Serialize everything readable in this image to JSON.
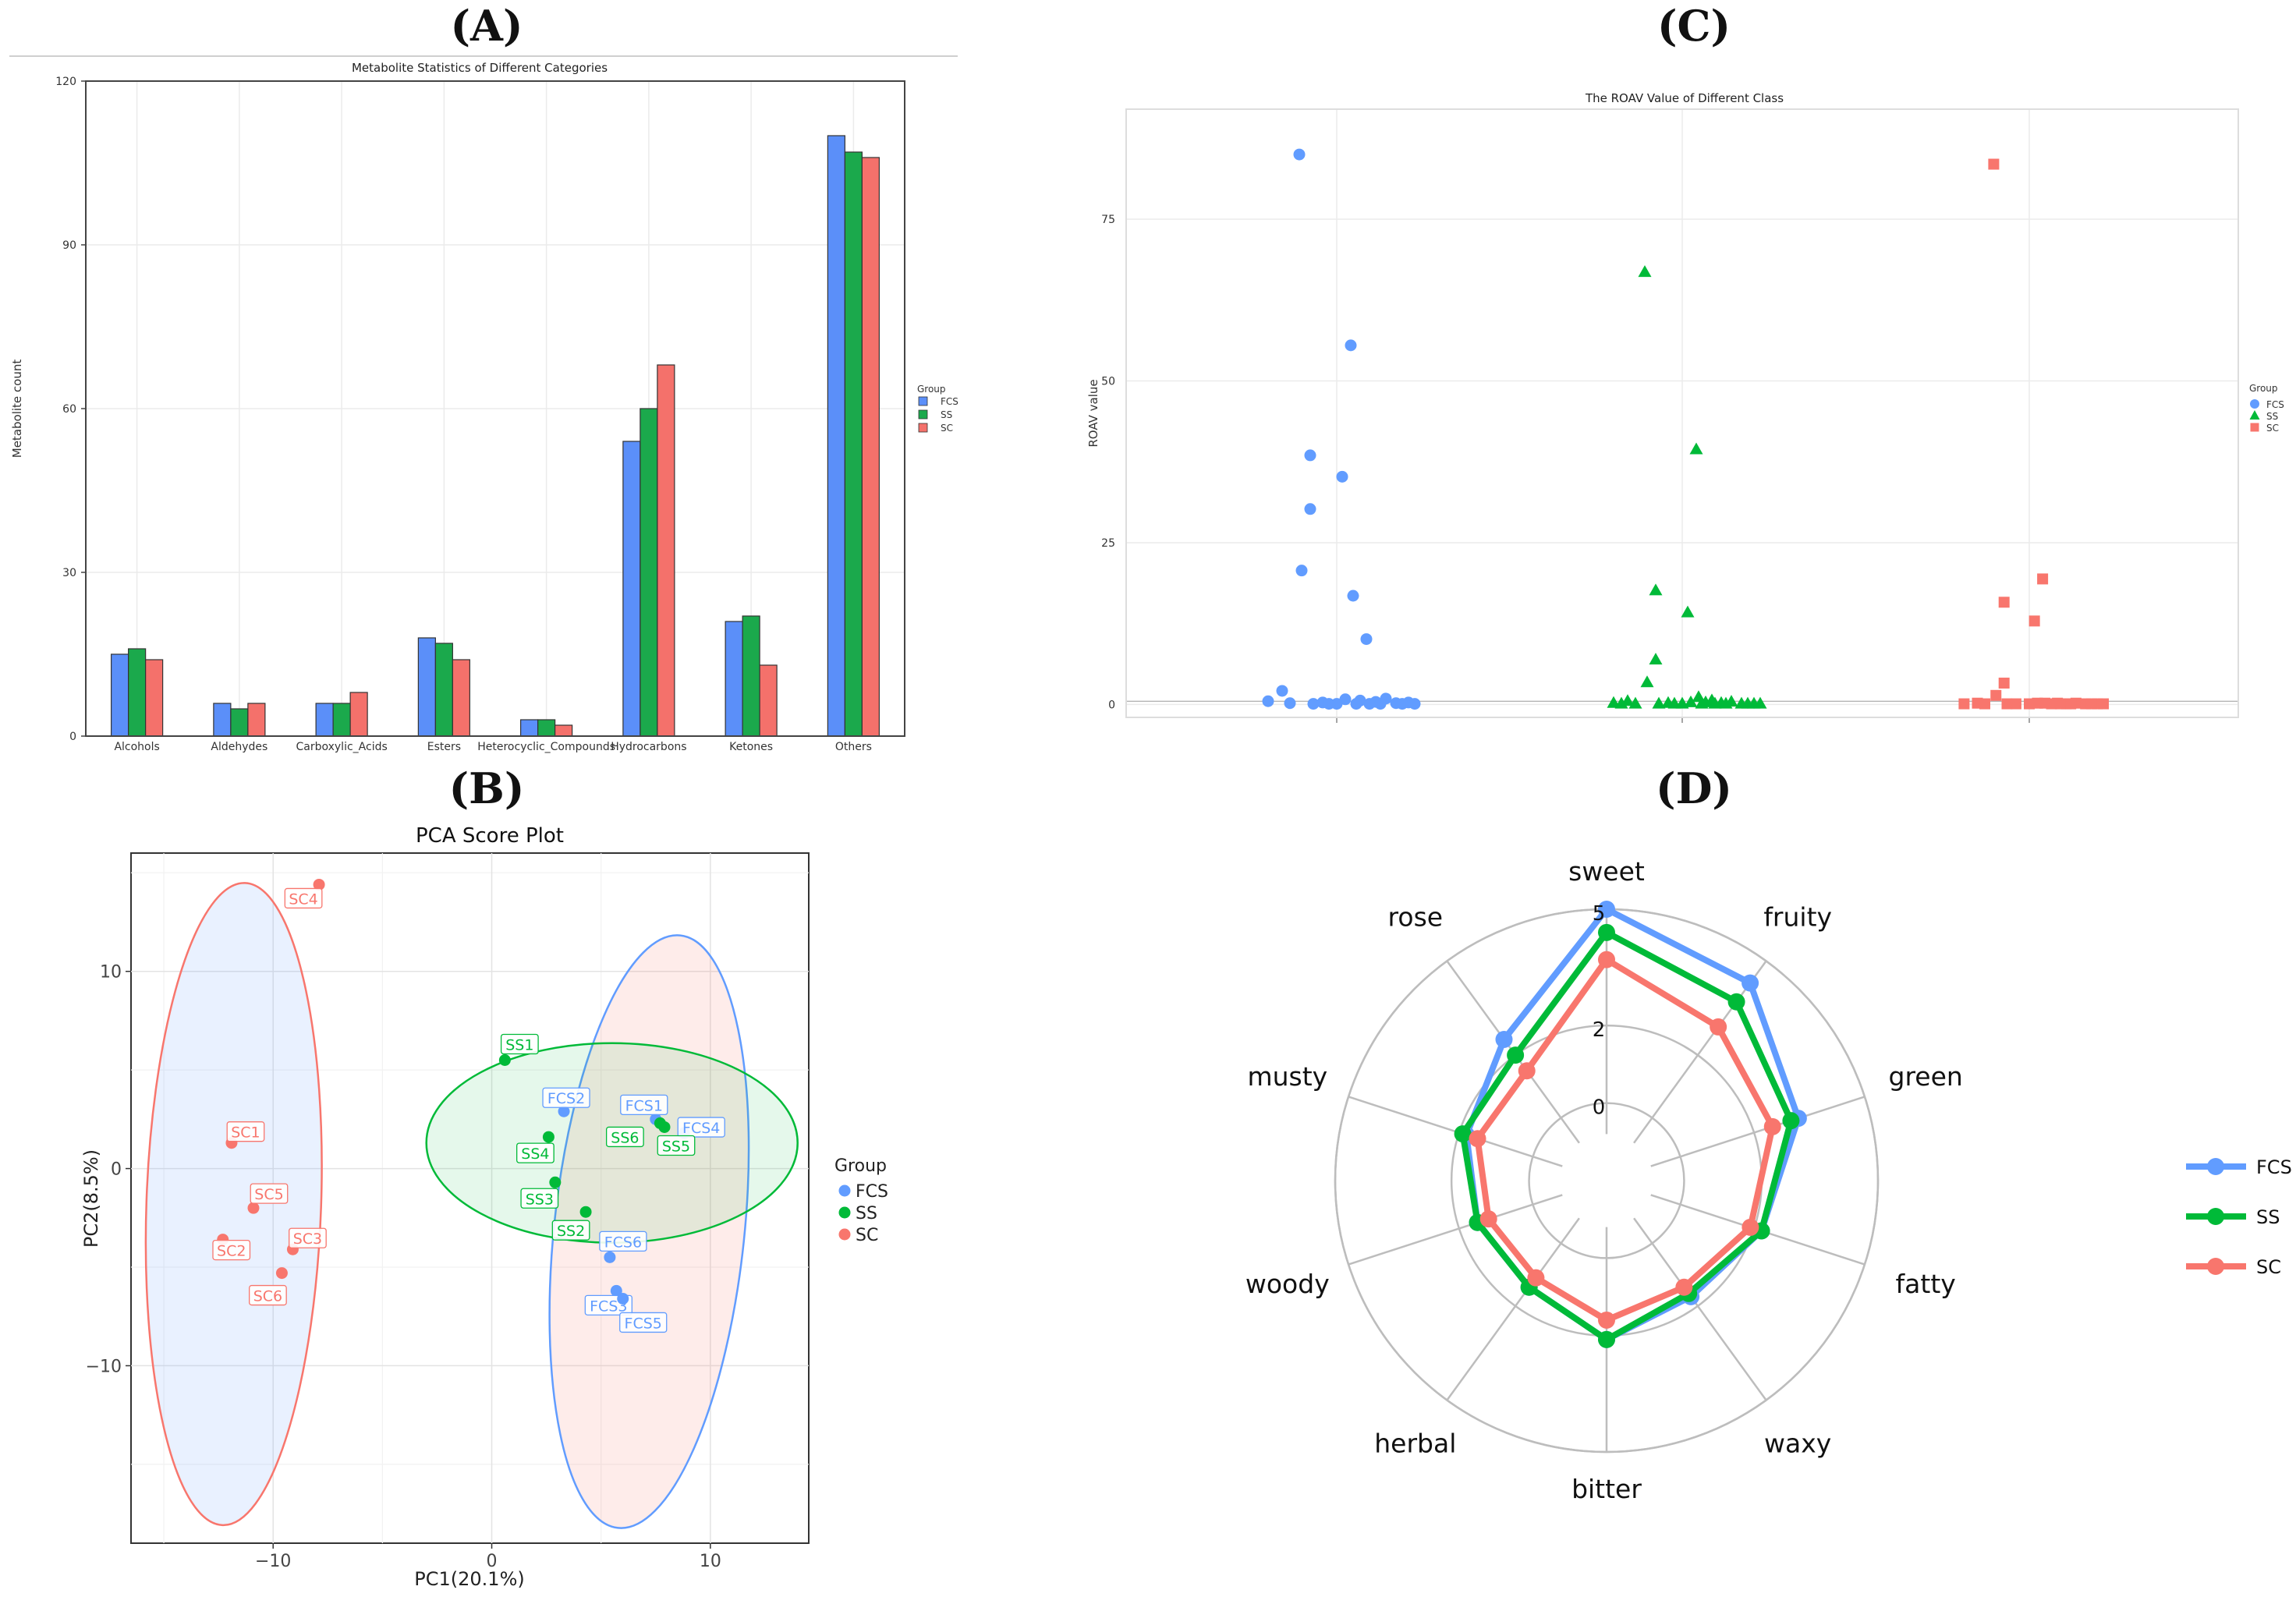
{
  "panels": {
    "A": "(A)",
    "B": "(B)",
    "C": "(C)",
    "D": "(D)"
  },
  "colors": {
    "FCS": "#619CFF",
    "SS": "#00BA38",
    "SC": "#F8766D",
    "bar_FCS": "#5B8FF9",
    "bar_SS": "#1BA94C",
    "bar_SC": "#F4716B"
  },
  "chart_data": [
    {
      "id": "A",
      "type": "bar",
      "title": "Metabolite Statistics of Different Categories",
      "xlabel": "",
      "ylabel": "Metabolite count",
      "ylim": [
        0,
        120
      ],
      "yticks": [
        0,
        30,
        60,
        90,
        120
      ],
      "categories": [
        "Alcohols",
        "Aldehydes",
        "Carboxylic_Acids",
        "Esters",
        "Heterocyclic_Compounds",
        "Hydrocarbons",
        "Ketones",
        "Others"
      ],
      "legend_title": "Group",
      "series": [
        {
          "name": "FCS",
          "values": [
            15,
            6,
            6,
            18,
            3,
            54,
            21,
            110
          ]
        },
        {
          "name": "SS",
          "values": [
            16,
            5,
            6,
            17,
            3,
            60,
            22,
            107
          ]
        },
        {
          "name": "SC",
          "values": [
            14,
            6,
            8,
            14,
            2,
            68,
            13,
            106
          ]
        }
      ]
    },
    {
      "id": "B",
      "type": "scatter",
      "title": "PCA Score Plot",
      "xlabel": "PC1(20.1%)",
      "ylabel": "PC2(8.5%)",
      "xlim": [
        -16.5,
        14.5
      ],
      "ylim": [
        -19,
        16
      ],
      "xticks": [
        -10,
        0,
        10
      ],
      "yticks": [
        -10,
        0,
        10
      ],
      "legend_title": "Group",
      "series": [
        {
          "name": "FCS",
          "points": [
            {
              "label": "FCS1",
              "x": 7.5,
              "y": 2.5
            },
            {
              "label": "FCS2",
              "x": 3.3,
              "y": 2.9
            },
            {
              "label": "FCS3",
              "x": 5.7,
              "y": -6.2
            },
            {
              "label": "FCS4",
              "x": 8.8,
              "y": 1.8
            },
            {
              "label": "FCS5",
              "x": 6.0,
              "y": -6.6
            },
            {
              "label": "FCS6",
              "x": 5.4,
              "y": -4.5
            }
          ]
        },
        {
          "name": "SS",
          "points": [
            {
              "label": "SS1",
              "x": 0.6,
              "y": 5.5
            },
            {
              "label": "SS2",
              "x": 4.3,
              "y": -2.2
            },
            {
              "label": "SS3",
              "x": 2.9,
              "y": -0.7
            },
            {
              "label": "SS4",
              "x": 2.6,
              "y": 1.6
            },
            {
              "label": "SS5",
              "x": 7.9,
              "y": 2.1
            },
            {
              "label": "SS6",
              "x": 7.7,
              "y": 2.3
            }
          ]
        },
        {
          "name": "SC",
          "points": [
            {
              "label": "SC1",
              "x": -11.9,
              "y": 1.3
            },
            {
              "label": "SC2",
              "x": -12.3,
              "y": -3.6
            },
            {
              "label": "SC3",
              "x": -9.1,
              "y": -4.1
            },
            {
              "label": "SC4",
              "x": -7.9,
              "y": 14.4
            },
            {
              "label": "SC5",
              "x": -10.9,
              "y": -2.0
            },
            {
              "label": "SC6",
              "x": -9.6,
              "y": -5.3
            }
          ]
        }
      ]
    },
    {
      "id": "C",
      "type": "scatter",
      "title": "The ROAV Value of Different Class",
      "xlabel": "",
      "ylabel": "ROAV value",
      "ylim": [
        -2,
        92
      ],
      "yticks": [
        0,
        25,
        50,
        75
      ],
      "legend_title": "Group",
      "series": [
        {
          "name": "FCS",
          "values": [
            85,
            55.5,
            38.5,
            35.2,
            30.2,
            20.7,
            16.8,
            10.1,
            2.1,
            0.9,
            0.8,
            0.6,
            0.5,
            0.4,
            0.3,
            0.3,
            0.2,
            0.2,
            0.1,
            0.1,
            0.1,
            0.1,
            0.1,
            0.1,
            0.1,
            0.1
          ]
        },
        {
          "name": "SS",
          "values": [
            66.8,
            39.4,
            17.6,
            14.2,
            6.9,
            3.4,
            1.1,
            0.6,
            0.5,
            0.4,
            0.3,
            0.3,
            0.2,
            0.2,
            0.2,
            0.1,
            0.1,
            0.1,
            0.1,
            0.1,
            0.1,
            0.1,
            0.1,
            0.1,
            0.1,
            0.1,
            0.1
          ]
        },
        {
          "name": "SC",
          "values": [
            83.5,
            19.4,
            15.8,
            12.9,
            3.3,
            1.4,
            0.2,
            0.2,
            0.2,
            0.2,
            0.2,
            0.1,
            0.1,
            0.1,
            0.1,
            0.1,
            0.1,
            0.1,
            0.1,
            0.1,
            0.1,
            0.1,
            0.1,
            0.1
          ]
        }
      ]
    },
    {
      "id": "D",
      "type": "radar",
      "title": "",
      "axes": [
        "sweet",
        "fruity",
        "green",
        "fatty",
        "waxy",
        "bitter",
        "herbal",
        "woody",
        "musty",
        "rose"
      ],
      "rlim": [
        -2,
        5
      ],
      "ticks": [
        0,
        2,
        5
      ],
      "series": [
        {
          "name": "FCS",
          "values": [
            5,
            4.3,
            3.2,
            2.2,
            1.7,
            2.1,
            1.4,
            1.5,
            1.8,
            2.5
          ]
        },
        {
          "name": "SS",
          "values": [
            4.4,
            3.7,
            3.0,
            2.2,
            1.6,
            2.1,
            1.4,
            1.5,
            1.9,
            2.0
          ]
        },
        {
          "name": "SC",
          "values": [
            3.7,
            2.9,
            2.5,
            1.9,
            1.4,
            1.6,
            1.1,
            1.2,
            1.5,
            1.5
          ]
        }
      ]
    }
  ]
}
